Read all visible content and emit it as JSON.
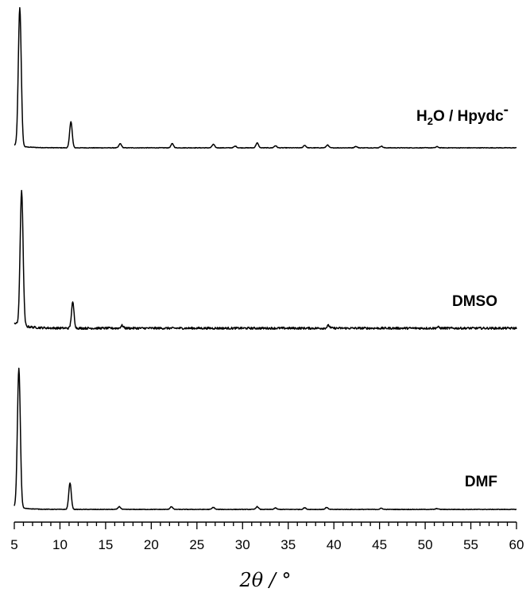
{
  "chart_data": {
    "type": "line",
    "xlabel": "2θ / °",
    "xlim": [
      5,
      60
    ],
    "major_ticks": [
      5,
      10,
      15,
      20,
      25,
      30,
      35,
      40,
      45,
      50,
      55,
      60
    ],
    "minor_tick_step": 1,
    "grid": false,
    "legend": "none",
    "y_axis_shown": false,
    "series": [
      {
        "name": "H2O / Hpydc-",
        "label_main": "H",
        "label_sub": "2",
        "label_rest": "O / Hpydc",
        "label_sup": "-",
        "noise": 0.002,
        "baseline_start": 0.02,
        "peaks": [
          {
            "x": 5.6,
            "h": 1.0
          },
          {
            "x": 11.2,
            "h": 0.19
          },
          {
            "x": 16.6,
            "h": 0.03
          },
          {
            "x": 22.3,
            "h": 0.03
          },
          {
            "x": 26.8,
            "h": 0.025
          },
          {
            "x": 29.2,
            "h": 0.012
          },
          {
            "x": 31.6,
            "h": 0.035
          },
          {
            "x": 33.6,
            "h": 0.015
          },
          {
            "x": 36.8,
            "h": 0.018
          },
          {
            "x": 39.3,
            "h": 0.02
          },
          {
            "x": 42.4,
            "h": 0.01
          },
          {
            "x": 45.2,
            "h": 0.012
          },
          {
            "x": 51.3,
            "h": 0.008
          }
        ]
      },
      {
        "name": "DMSO",
        "noise": 0.008,
        "baseline_start": 0.04,
        "peaks": [
          {
            "x": 5.8,
            "h": 1.0
          },
          {
            "x": 11.4,
            "h": 0.19
          },
          {
            "x": 16.8,
            "h": 0.02
          },
          {
            "x": 39.4,
            "h": 0.02
          },
          {
            "x": 51.4,
            "h": 0.008
          }
        ]
      },
      {
        "name": "DMF",
        "noise": 0.002,
        "baseline_start": 0.02,
        "peaks": [
          {
            "x": 5.5,
            "h": 1.0
          },
          {
            "x": 11.1,
            "h": 0.19
          },
          {
            "x": 16.5,
            "h": 0.02
          },
          {
            "x": 22.2,
            "h": 0.02
          },
          {
            "x": 26.8,
            "h": 0.015
          },
          {
            "x": 31.6,
            "h": 0.02
          },
          {
            "x": 33.6,
            "h": 0.01
          },
          {
            "x": 36.8,
            "h": 0.012
          },
          {
            "x": 39.2,
            "h": 0.014
          },
          {
            "x": 45.2,
            "h": 0.008
          },
          {
            "x": 51.3,
            "h": 0.006
          }
        ]
      }
    ]
  }
}
